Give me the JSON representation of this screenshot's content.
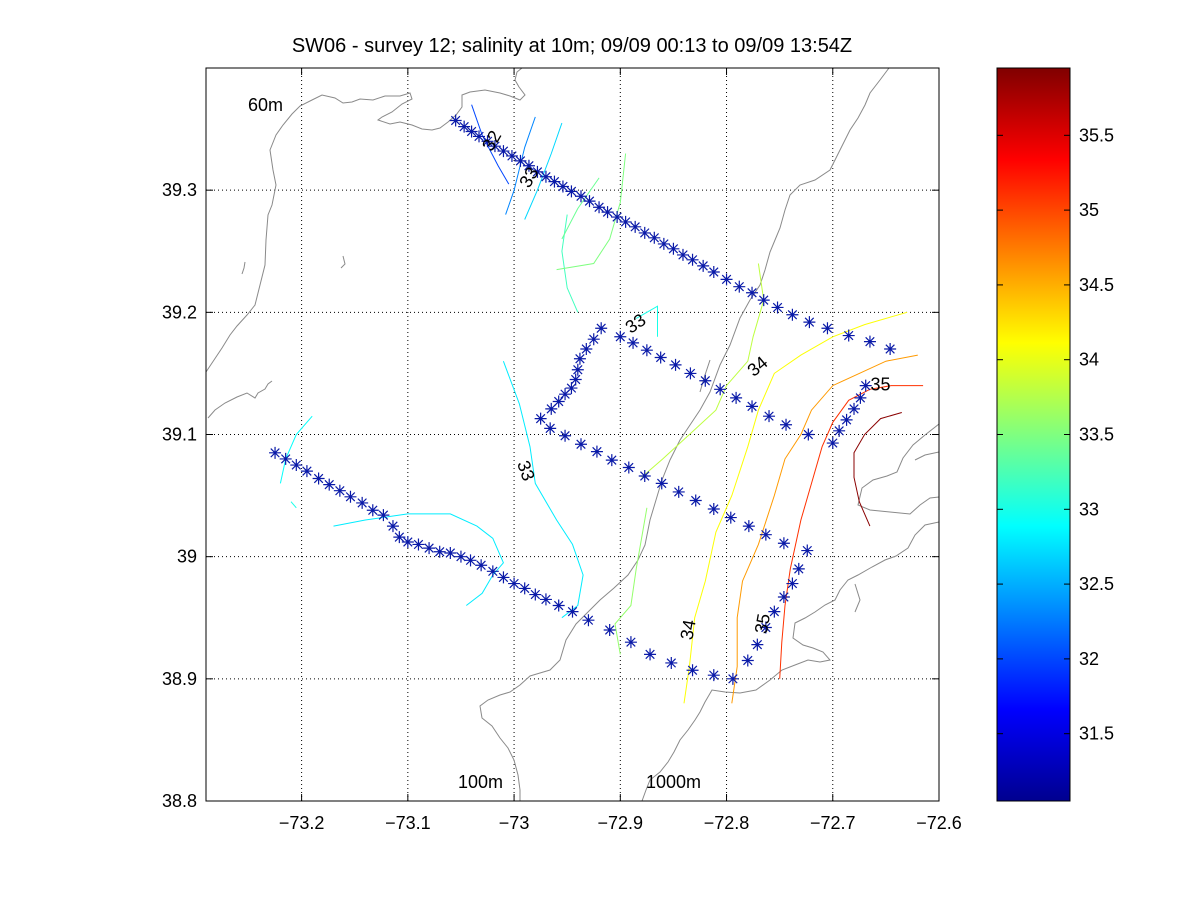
{
  "chart_data": {
    "type": "line",
    "title": "SW06 - survey 12; salinity at 10m; 09/09 00:13 to 09/09 13:54Z",
    "xlabel": "",
    "ylabel": "",
    "xlim": [
      -73.29,
      -72.6
    ],
    "ylim": [
      38.8,
      39.4
    ],
    "xticks": [
      -73.2,
      -73.1,
      -73.0,
      -72.9,
      -72.8,
      -72.7,
      -72.6
    ],
    "xtick_labels": [
      "−73.2",
      "−73.1",
      "−73",
      "−72.9",
      "−72.8",
      "−72.7",
      "−72.6"
    ],
    "yticks": [
      38.8,
      38.9,
      39.0,
      39.1,
      39.2,
      39.3
    ],
    "ytick_labels": [
      "38.8",
      "38.9",
      "39",
      "39.1",
      "39.2",
      "39.3"
    ],
    "grid": true,
    "colorbar": {
      "colormap": "jet",
      "range": [
        31.05,
        35.95
      ],
      "ticks": [
        31.5,
        32,
        32.5,
        33,
        33.5,
        34,
        34.5,
        35,
        35.5
      ],
      "tick_labels": [
        "31.5",
        "32",
        "32.5",
        "33",
        "33.5",
        "34",
        "34.5",
        "35",
        "35.5"
      ]
    },
    "annotations": [
      {
        "text": "60m",
        "x": -73.25,
        "y": 39.365
      },
      {
        "text": "100m",
        "x": -73.03,
        "y": 38.815
      },
      {
        "text": "1000m",
        "x": -72.875,
        "y": 38.815
      }
    ],
    "contour_labels": [
      {
        "text": "32",
        "x": -73.02,
        "y": 39.34,
        "angle": -60
      },
      {
        "text": "33",
        "x": -72.985,
        "y": 39.31,
        "angle": -60
      },
      {
        "text": "33",
        "x": -72.885,
        "y": 39.19,
        "angle": -35
      },
      {
        "text": "34",
        "x": -72.77,
        "y": 39.155,
        "angle": -40
      },
      {
        "text": "35",
        "x": -72.655,
        "y": 39.14,
        "angle": 0
      },
      {
        "text": "33",
        "x": -72.99,
        "y": 39.07,
        "angle": 70
      },
      {
        "text": "34",
        "x": -72.835,
        "y": 38.94,
        "angle": -80
      },
      {
        "text": "35",
        "x": -72.765,
        "y": 38.945,
        "angle": -80
      }
    ],
    "stations": [
      [
        -73.055,
        39.357
      ],
      [
        -73.047,
        39.352
      ],
      [
        -73.04,
        39.348
      ],
      [
        -73.033,
        39.344
      ],
      [
        -73.025,
        39.34
      ],
      [
        -73.018,
        39.336
      ],
      [
        -73.01,
        39.332
      ],
      [
        -73.002,
        39.328
      ],
      [
        -72.994,
        39.324
      ],
      [
        -72.986,
        39.32
      ],
      [
        -72.978,
        39.315
      ],
      [
        -72.97,
        39.311
      ],
      [
        -72.962,
        39.307
      ],
      [
        -72.954,
        39.303
      ],
      [
        -72.946,
        39.299
      ],
      [
        -72.937,
        39.295
      ],
      [
        -72.929,
        39.291
      ],
      [
        -72.92,
        39.286
      ],
      [
        -72.912,
        39.282
      ],
      [
        -72.903,
        39.278
      ],
      [
        -72.895,
        39.274
      ],
      [
        -72.886,
        39.27
      ],
      [
        -72.877,
        39.265
      ],
      [
        -72.868,
        39.261
      ],
      [
        -72.859,
        39.256
      ],
      [
        -72.85,
        39.252
      ],
      [
        -72.841,
        39.247
      ],
      [
        -72.832,
        39.243
      ],
      [
        -72.822,
        39.238
      ],
      [
        -72.812,
        39.233
      ],
      [
        -72.8,
        39.227
      ],
      [
        -72.788,
        39.221
      ],
      [
        -72.776,
        39.216
      ],
      [
        -72.765,
        39.21
      ],
      [
        -72.752,
        39.204
      ],
      [
        -72.738,
        39.198
      ],
      [
        -72.722,
        39.192
      ],
      [
        -72.705,
        39.187
      ],
      [
        -72.685,
        39.181
      ],
      [
        -72.665,
        39.176
      ],
      [
        -72.646,
        39.17
      ],
      [
        -72.918,
        39.187
      ],
      [
        -72.925,
        39.178
      ],
      [
        -72.932,
        39.17
      ],
      [
        -72.938,
        39.162
      ],
      [
        -72.94,
        39.153
      ],
      [
        -72.942,
        39.145
      ],
      [
        -72.946,
        39.138
      ],
      [
        -72.952,
        39.133
      ],
      [
        -72.958,
        39.127
      ],
      [
        -72.965,
        39.121
      ],
      [
        -72.975,
        39.113
      ],
      [
        -72.9,
        39.18
      ],
      [
        -72.888,
        39.175
      ],
      [
        -72.875,
        39.169
      ],
      [
        -72.862,
        39.163
      ],
      [
        -72.848,
        39.157
      ],
      [
        -72.834,
        39.15
      ],
      [
        -72.82,
        39.144
      ],
      [
        -72.806,
        39.137
      ],
      [
        -72.791,
        39.13
      ],
      [
        -72.776,
        39.123
      ],
      [
        -72.76,
        39.115
      ],
      [
        -72.744,
        39.108
      ],
      [
        -72.723,
        39.1
      ],
      [
        -72.7,
        39.093
      ],
      [
        -72.966,
        39.105
      ],
      [
        -72.952,
        39.099
      ],
      [
        -72.937,
        39.092
      ],
      [
        -72.922,
        39.086
      ],
      [
        -72.908,
        39.079
      ],
      [
        -72.892,
        39.073
      ],
      [
        -72.877,
        39.066
      ],
      [
        -72.861,
        39.06
      ],
      [
        -72.845,
        39.053
      ],
      [
        -72.829,
        39.046
      ],
      [
        -72.812,
        39.039
      ],
      [
        -72.796,
        39.032
      ],
      [
        -72.779,
        39.025
      ],
      [
        -72.763,
        39.018
      ],
      [
        -72.746,
        39.011
      ],
      [
        -72.724,
        39.005
      ],
      [
        -72.669,
        39.14
      ],
      [
        -72.674,
        39.13
      ],
      [
        -72.68,
        39.121
      ],
      [
        -72.687,
        39.112
      ],
      [
        -72.694,
        39.103
      ],
      [
        -73.225,
        39.085
      ],
      [
        -73.215,
        39.08
      ],
      [
        -73.205,
        39.075
      ],
      [
        -73.195,
        39.07
      ],
      [
        -73.184,
        39.064
      ],
      [
        -73.174,
        39.059
      ],
      [
        -73.164,
        39.054
      ],
      [
        -73.154,
        39.049
      ],
      [
        -73.143,
        39.044
      ],
      [
        -73.133,
        39.038
      ],
      [
        -73.123,
        39.034
      ],
      [
        -73.114,
        39.025
      ],
      [
        -73.108,
        39.016
      ],
      [
        -73.1,
        39.012
      ],
      [
        -73.09,
        39.01
      ],
      [
        -73.08,
        39.007
      ],
      [
        -73.07,
        39.004
      ],
      [
        -73.06,
        39.003
      ],
      [
        -73.05,
        39.0
      ],
      [
        -73.041,
        38.997
      ],
      [
        -73.031,
        38.993
      ],
      [
        -73.02,
        38.988
      ],
      [
        -73.01,
        38.983
      ],
      [
        -73.0,
        38.978
      ],
      [
        -72.99,
        38.974
      ],
      [
        -72.98,
        38.969
      ],
      [
        -72.97,
        38.965
      ],
      [
        -72.958,
        38.96
      ],
      [
        -72.945,
        38.955
      ],
      [
        -72.93,
        38.948
      ],
      [
        -72.91,
        38.94
      ],
      [
        -72.89,
        38.93
      ],
      [
        -72.872,
        38.92
      ],
      [
        -72.852,
        38.913
      ],
      [
        -72.832,
        38.907
      ],
      [
        -72.812,
        38.903
      ],
      [
        -72.794,
        38.9
      ],
      [
        -72.78,
        38.915
      ],
      [
        -72.771,
        38.928
      ],
      [
        -72.763,
        38.942
      ],
      [
        -72.755,
        38.955
      ],
      [
        -72.746,
        38.967
      ],
      [
        -72.738,
        38.978
      ],
      [
        -72.732,
        38.99
      ]
    ],
    "contours": [
      {
        "level": 32.0,
        "points": [
          [
            -73.04,
            39.37
          ],
          [
            -73.03,
            39.345
          ],
          [
            -73.015,
            39.32
          ],
          [
            -73.005,
            39.305
          ]
        ]
      },
      {
        "level": 32.3,
        "points": [
          [
            -72.98,
            39.36
          ],
          [
            -72.99,
            39.335
          ],
          [
            -73.0,
            39.3
          ],
          [
            -73.008,
            39.28
          ]
        ]
      },
      {
        "level": 32.7,
        "points": [
          [
            -72.955,
            39.355
          ],
          [
            -72.965,
            39.33
          ],
          [
            -72.978,
            39.3
          ],
          [
            -72.99,
            39.276
          ]
        ]
      },
      {
        "level": 33.2,
        "points": [
          [
            -72.95,
            39.28
          ],
          [
            -72.955,
            39.25
          ],
          [
            -72.95,
            39.22
          ],
          [
            -72.94,
            39.2
          ]
        ]
      },
      {
        "level": 33.4,
        "points": [
          [
            -72.92,
            39.31
          ],
          [
            -72.94,
            39.285
          ],
          [
            -72.955,
            39.26
          ]
        ]
      },
      {
        "level": 33.5,
        "points": [
          [
            -72.895,
            39.33
          ],
          [
            -72.9,
            39.29
          ],
          [
            -72.91,
            39.26
          ],
          [
            -72.925,
            39.24
          ],
          [
            -72.96,
            39.235
          ]
        ]
      },
      {
        "level": 33.8,
        "points": [
          [
            -72.77,
            39.24
          ],
          [
            -72.765,
            39.21
          ],
          [
            -72.775,
            39.18
          ],
          [
            -72.78,
            39.16
          ],
          [
            -72.8,
            39.14
          ],
          [
            -72.81,
            39.12
          ],
          [
            -72.835,
            39.1
          ],
          [
            -72.86,
            39.08
          ],
          [
            -72.88,
            39.065
          ]
        ]
      },
      {
        "level": 33.0,
        "points": [
          [
            -72.885,
            39.195
          ],
          [
            -72.875,
            39.2
          ],
          [
            -72.865,
            39.205
          ],
          [
            -72.865,
            39.18
          ]
        ]
      },
      {
        "level": 32.8,
        "points": [
          [
            -73.01,
            39.16
          ],
          [
            -72.995,
            39.125
          ],
          [
            -72.985,
            39.09
          ],
          [
            -72.98,
            39.06
          ],
          [
            -72.96,
            39.03
          ],
          [
            -72.945,
            39.01
          ],
          [
            -72.935,
            38.985
          ],
          [
            -72.94,
            38.96
          ],
          [
            -72.955,
            38.95
          ]
        ]
      },
      {
        "level": 33.6,
        "points": [
          [
            -72.875,
            39.04
          ],
          [
            -72.885,
            38.99
          ],
          [
            -72.89,
            38.96
          ],
          [
            -72.905,
            38.945
          ],
          [
            -72.9,
            38.92
          ]
        ]
      },
      {
        "level": 34.1,
        "points": [
          [
            -72.63,
            39.2
          ],
          [
            -72.67,
            39.19
          ],
          [
            -72.7,
            39.18
          ],
          [
            -72.73,
            39.165
          ],
          [
            -72.755,
            39.15
          ],
          [
            -72.77,
            39.12
          ],
          [
            -72.78,
            39.09
          ],
          [
            -72.795,
            39.05
          ],
          [
            -72.81,
            39.02
          ],
          [
            -72.82,
            38.98
          ],
          [
            -72.83,
            38.95
          ],
          [
            -72.835,
            38.91
          ],
          [
            -72.84,
            38.88
          ]
        ]
      },
      {
        "level": 34.6,
        "points": [
          [
            -72.62,
            39.165
          ],
          [
            -72.65,
            39.16
          ],
          [
            -72.675,
            39.15
          ],
          [
            -72.7,
            39.14
          ],
          [
            -72.72,
            39.12
          ],
          [
            -72.73,
            39.1
          ],
          [
            -72.745,
            39.08
          ],
          [
            -72.755,
            39.05
          ],
          [
            -72.77,
            39.01
          ],
          [
            -72.785,
            38.98
          ],
          [
            -72.79,
            38.95
          ],
          [
            -72.79,
            38.91
          ],
          [
            -72.795,
            38.88
          ]
        ]
      },
      {
        "level": 35.1,
        "points": [
          [
            -72.615,
            39.14
          ],
          [
            -72.645,
            39.14
          ],
          [
            -72.665,
            39.137
          ],
          [
            -72.685,
            39.128
          ],
          [
            -72.7,
            39.11
          ],
          [
            -72.71,
            39.09
          ],
          [
            -72.72,
            39.06
          ],
          [
            -72.73,
            39.03
          ],
          [
            -72.74,
            38.99
          ],
          [
            -72.745,
            38.96
          ],
          [
            -72.748,
            38.93
          ],
          [
            -72.75,
            38.9
          ]
        ]
      },
      {
        "level": 35.9,
        "points": [
          [
            -72.635,
            39.118
          ],
          [
            -72.655,
            39.113
          ],
          [
            -72.67,
            39.1
          ],
          [
            -72.68,
            39.085
          ],
          [
            -72.68,
            39.065
          ],
          [
            -72.675,
            39.045
          ],
          [
            -72.665,
            39.025
          ]
        ]
      },
      {
        "level": 32.9,
        "points": [
          [
            -73.19,
            39.115
          ],
          [
            -73.205,
            39.1
          ],
          [
            -73.215,
            39.08
          ],
          [
            -73.22,
            39.06
          ]
        ]
      },
      {
        "level": 33.0,
        "points": [
          [
            -73.21,
            39.045
          ],
          [
            -73.205,
            39.04
          ]
        ]
      },
      {
        "level": 32.8,
        "points": [
          [
            -73.17,
            39.025
          ],
          [
            -73.14,
            39.03
          ],
          [
            -73.1,
            39.035
          ],
          [
            -73.06,
            39.035
          ],
          [
            -73.035,
            39.025
          ],
          [
            -73.02,
            39.015
          ],
          [
            -73.01,
            38.995
          ],
          [
            -73.02,
            38.985
          ],
          [
            -73.03,
            38.97
          ],
          [
            -73.045,
            38.96
          ]
        ]
      }
    ],
    "bathymetry_note": "isobaths drawn as gray lines"
  }
}
